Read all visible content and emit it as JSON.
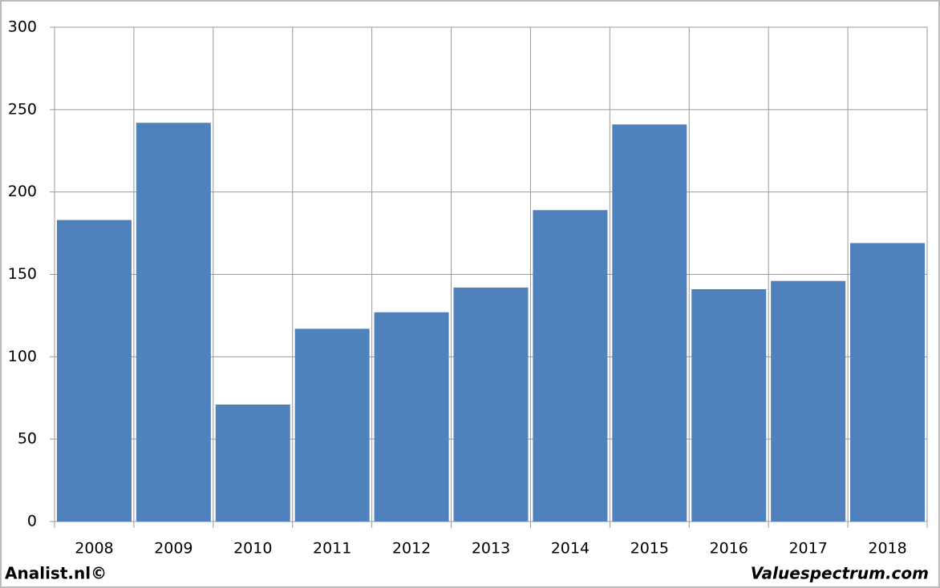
{
  "chart_data": {
    "type": "bar",
    "categories": [
      "2008",
      "2009",
      "2010",
      "2011",
      "2012",
      "2013",
      "2014",
      "2015",
      "2016",
      "2017",
      "2018"
    ],
    "values": [
      183,
      242,
      71,
      117,
      127,
      142,
      189,
      241,
      141,
      146,
      169
    ],
    "color": "#4f81bd",
    "ylim": [
      0,
      300
    ],
    "yticks": [
      0,
      50,
      100,
      150,
      200,
      250,
      300
    ],
    "grid": true
  },
  "footer": {
    "left": "Analist.nl©",
    "right": "Valuespectrum.com"
  }
}
